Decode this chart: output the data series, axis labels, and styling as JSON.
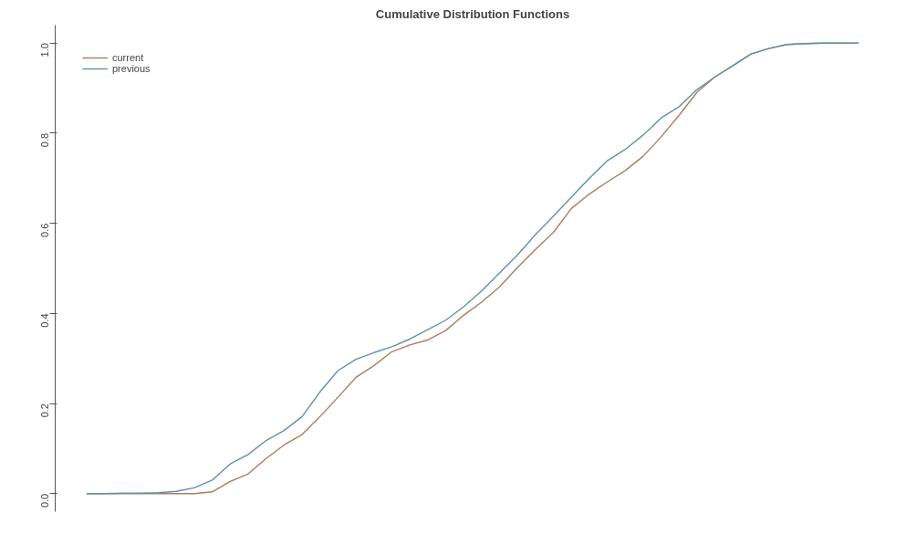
{
  "chart_data": {
    "type": "line",
    "title": "Cumulative Distribution Functions",
    "categories": [
      null,
      null,
      null,
      null,
      null,
      null,
      null,
      null,
      null,
      null,
      null,
      null,
      null,
      null,
      null,
      null,
      null,
      null,
      null,
      null,
      null,
      null,
      null,
      null,
      null,
      null,
      null,
      null,
      null,
      null,
      null,
      null,
      null,
      null,
      null,
      null,
      null,
      null,
      null,
      null,
      null,
      null,
      null,
      null
    ],
    "series": [
      {
        "name": "current",
        "color": "#a97e62",
        "values": [
          0,
          0,
          0,
          0,
          0,
          0,
          0,
          0.004,
          0.027,
          0.044,
          0.078,
          0.108,
          0.131,
          0.171,
          0.214,
          0.258,
          0.284,
          0.315,
          0.33,
          0.341,
          0.362,
          0.396,
          0.425,
          0.459,
          0.502,
          0.542,
          0.58,
          0.633,
          0.665,
          0.692,
          0.717,
          0.749,
          0.792,
          0.84,
          0.891,
          0.925,
          0.95,
          0.976,
          0.988,
          0.997,
          0.999,
          1,
          1,
          1
        ]
      },
      {
        "name": "previous",
        "color": "#5f93a8",
        "values": [
          0,
          0,
          0.001,
          0.001,
          0.002,
          0.005,
          0.013,
          0.03,
          0.066,
          0.087,
          0.118,
          0.14,
          0.171,
          0.226,
          0.273,
          0.298,
          0.313,
          0.326,
          0.343,
          0.364,
          0.385,
          0.415,
          0.45,
          0.49,
          0.53,
          0.575,
          0.616,
          0.658,
          0.7,
          0.739,
          0.764,
          0.796,
          0.834,
          0.859,
          0.897,
          0.925,
          0.95,
          0.976,
          0.988,
          0.997,
          0.999,
          1,
          1,
          1
        ]
      }
    ],
    "ylim": [
      -0.04,
      1.04
    ],
    "yticks": [
      {
        "value": 0,
        "label": "0.0"
      },
      0.2,
      0.4,
      0.6,
      0.8,
      {
        "value": 1,
        "label": "1.0"
      }
    ],
    "tick_labels": "y",
    "grid": false,
    "legend": "top left",
    "line_style": "solid",
    "marker": "none"
  }
}
